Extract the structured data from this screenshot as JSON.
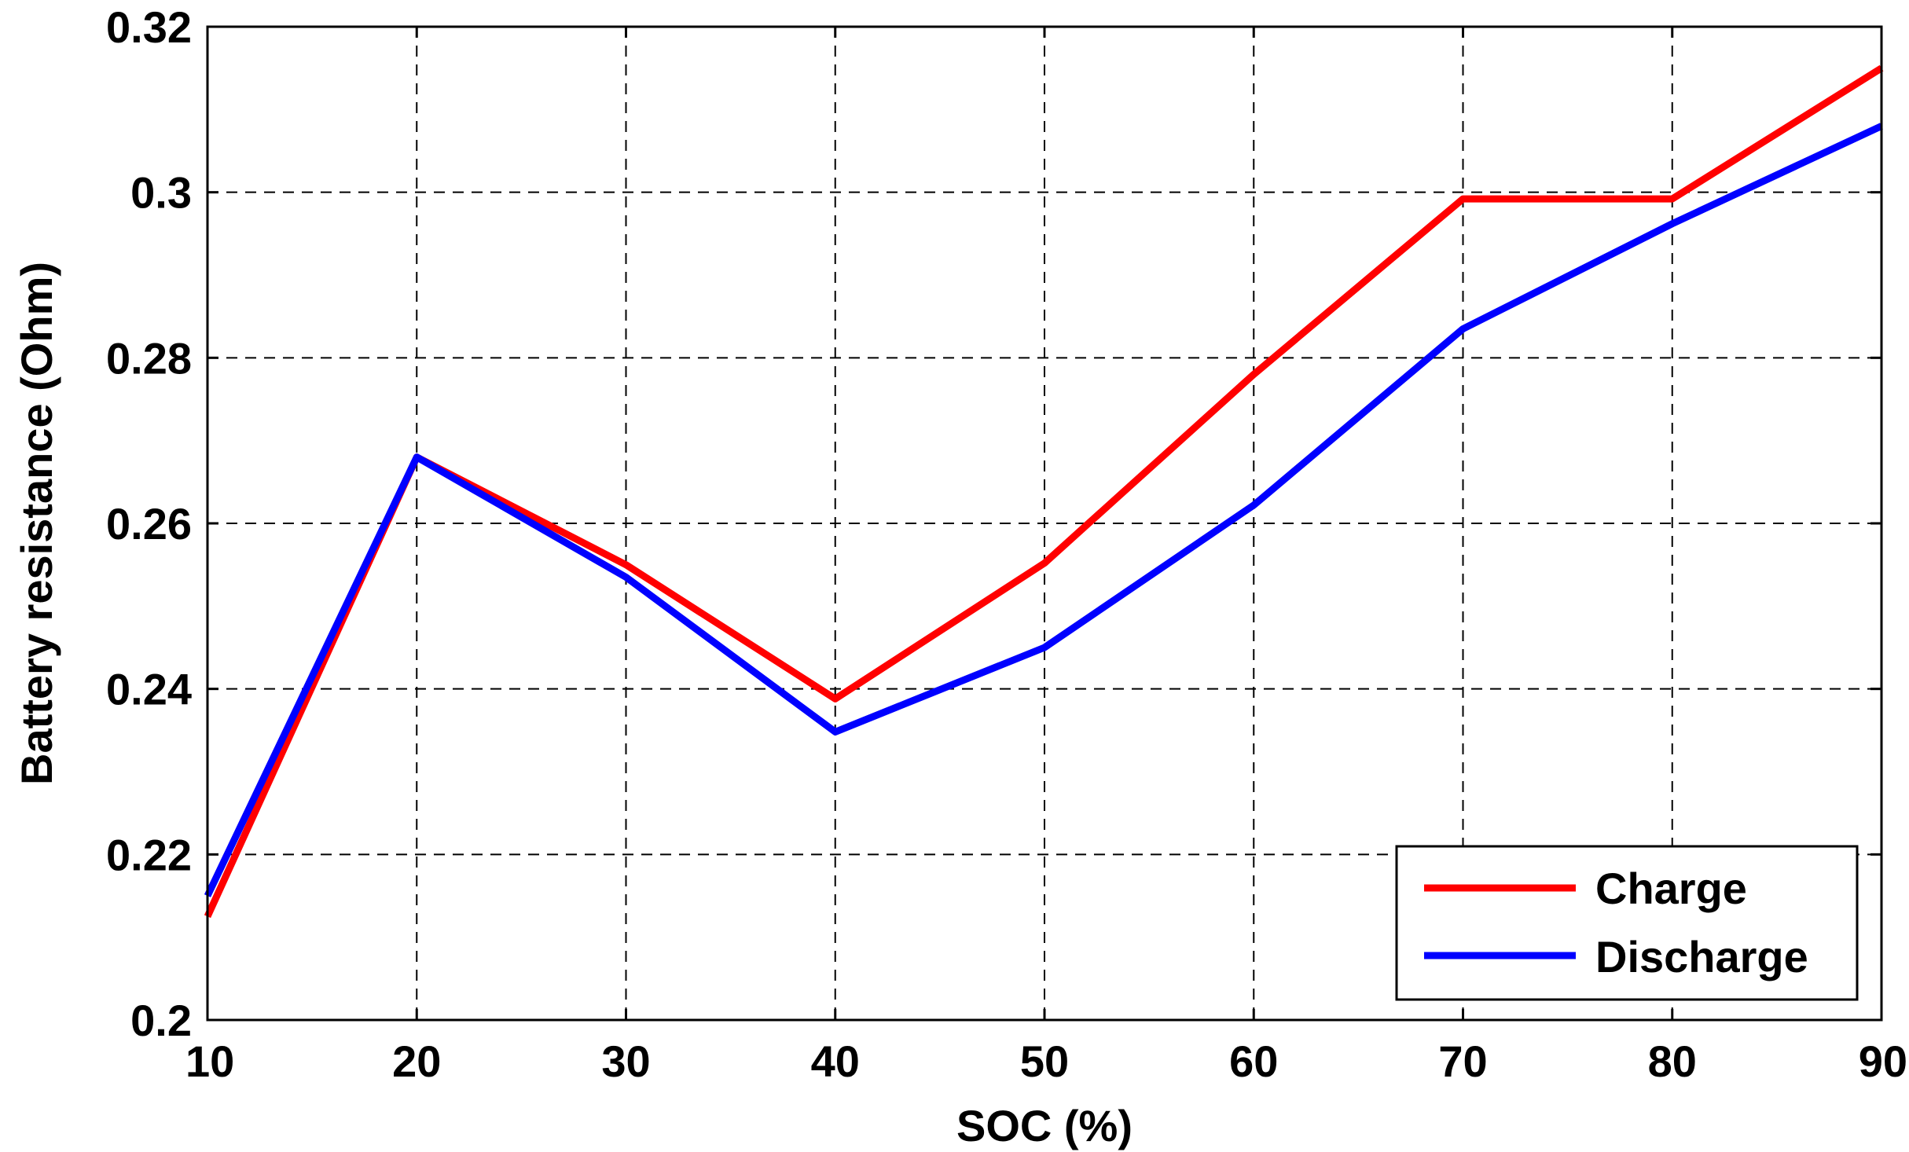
{
  "chart_data": {
    "type": "line",
    "title": "",
    "xlabel": "SOC (%)",
    "ylabel": "Battery resistance (Ohm)",
    "x": [
      10,
      20,
      30,
      40,
      50,
      60,
      70,
      80,
      90
    ],
    "xlim": [
      10,
      90
    ],
    "ylim": [
      0.2,
      0.32
    ],
    "xticks": [
      10,
      20,
      30,
      40,
      50,
      60,
      70,
      80,
      90
    ],
    "xtick_labels": [
      "10",
      "20",
      "30",
      "40",
      "50",
      "60",
      "70",
      "80",
      "90"
    ],
    "yticks": [
      0.2,
      0.22,
      0.24,
      0.26,
      0.28,
      0.3,
      0.32
    ],
    "ytick_labels": [
      "0.2",
      "0.22",
      "0.24",
      "0.26",
      "0.28",
      "0.3",
      "0.32"
    ],
    "grid": true,
    "legend_position": "bottom-right",
    "series": [
      {
        "name": "Charge",
        "color": "#ff0000",
        "values": [
          0.2125,
          0.268,
          0.255,
          0.2388,
          0.2552,
          0.278,
          0.2992,
          0.2992,
          0.315
        ]
      },
      {
        "name": "Discharge",
        "color": "#0000ff",
        "values": [
          0.215,
          0.268,
          0.2535,
          0.2348,
          0.245,
          0.2622,
          0.2835,
          0.2962,
          0.308
        ]
      }
    ]
  }
}
